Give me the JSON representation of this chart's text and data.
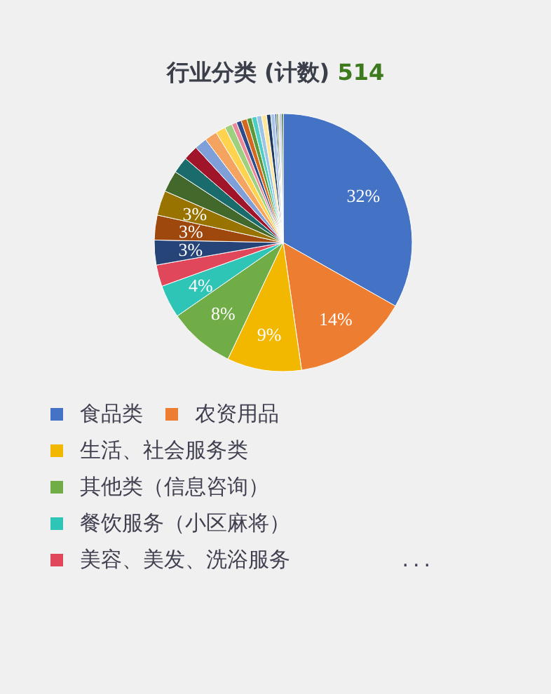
{
  "chart_data": {
    "type": "pie",
    "title": "行业分类 (计数)",
    "subtitle": "514",
    "categories": [
      "食品类",
      "农资用品",
      "生活、社会服务类",
      "其他类（信息咨询）",
      "餐饮服务（小区麻将）",
      "美容、美发、洗浴服务",
      null,
      null,
      null,
      null,
      null,
      null,
      null,
      null,
      null,
      null,
      null,
      null,
      null,
      null,
      null,
      null,
      null,
      null,
      null,
      null,
      null,
      null,
      null,
      null
    ],
    "values": [
      32,
      14,
      9,
      8,
      4,
      2.6,
      3,
      3,
      3,
      2.6,
      2.0,
      1.8,
      1.5,
      1.5,
      1.2,
      0.9,
      0.6,
      0.6,
      0.7,
      0.6,
      0.6,
      0.6,
      0.6,
      0.5,
      0.5,
      0.2,
      0.2,
      0.2,
      0.2,
      0.2
    ],
    "colors": [
      "#4472c4",
      "#ed7d31",
      "#f2b800",
      "#70ad47",
      "#2ec4b6",
      "#e0475b",
      "#264478",
      "#9e480e",
      "#997300",
      "#43682b",
      "#1a6b6b",
      "#a0152a",
      "#7f9fd8",
      "#f4a460",
      "#ffd34d",
      "#9fd07f",
      "#e88a9a",
      "#2d4a8a",
      "#d2691e",
      "#5a9a3a",
      "#4ecdc4",
      "#9dc3e6",
      "#ffe699",
      "#1f3a5f",
      "#a9c4eb",
      "#2f5496",
      "#548235",
      "#c9c9c9",
      "#8faadc",
      "#375623"
    ],
    "value_labels": [
      "32%",
      "14%",
      "9%",
      "8%",
      "4%",
      null,
      "3%",
      "3%",
      "3%",
      null,
      null,
      null,
      null,
      null,
      null,
      null,
      null,
      null,
      null,
      null,
      null,
      null,
      null,
      null,
      null,
      null,
      null,
      null,
      null,
      null
    ],
    "legend": "bottom",
    "annotations": [
      "..."
    ]
  }
}
